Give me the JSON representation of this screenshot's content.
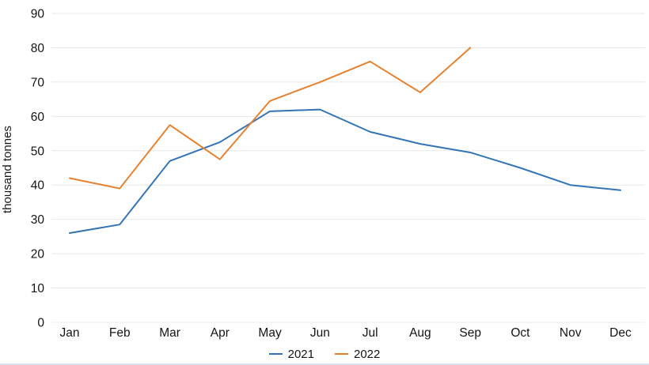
{
  "chart_data": {
    "type": "line",
    "title": "",
    "xlabel": "",
    "ylabel": "thousand tonnes",
    "categories": [
      "Jan",
      "Feb",
      "Mar",
      "Apr",
      "May",
      "Jun",
      "Jul",
      "Aug",
      "Sep",
      "Oct",
      "Nov",
      "Dec"
    ],
    "yticks": [
      0,
      10,
      20,
      30,
      40,
      50,
      60,
      70,
      80,
      90
    ],
    "ylim": [
      0,
      90
    ],
    "grid": "horizontal-only",
    "gridline_color": "#e8e8e8",
    "text_color": "#141414",
    "background_color": "#ffffff",
    "legend_position": "bottom-center",
    "series": [
      {
        "name": "2021",
        "color": "#3274b5",
        "values": [
          26,
          28.5,
          47,
          52.5,
          61.5,
          62,
          55.5,
          52,
          49.5,
          45,
          40,
          38.5
        ]
      },
      {
        "name": "2022",
        "color": "#e8812e",
        "values": [
          42,
          39,
          57.5,
          47.5,
          64.5,
          70,
          76,
          67,
          80,
          null,
          null,
          null
        ]
      }
    ]
  }
}
